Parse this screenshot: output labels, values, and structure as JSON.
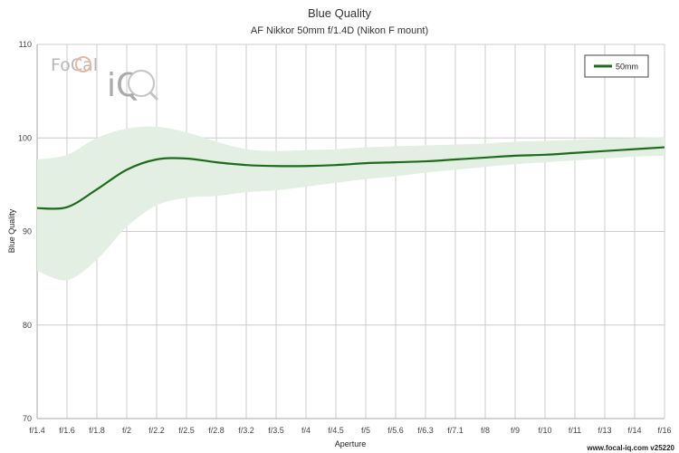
{
  "chart_data": {
    "type": "line",
    "title": "Blue Quality",
    "subtitle": "AF Nikkor 50mm f/1.4D (Nikon F mount)",
    "xlabel": "Aperture",
    "ylabel": "Blue Quality",
    "x_ticks": [
      "f/1.4",
      "f/1.6",
      "f/1.8",
      "f/2",
      "f/2.2",
      "f/2.5",
      "f/2.8",
      "f/3.2",
      "f/3.5",
      "f/4",
      "f/4.5",
      "f/5",
      "f/5.6",
      "f/6.3",
      "f/7.1",
      "f/8",
      "f/9",
      "f/10",
      "f/11",
      "f/13",
      "f/14",
      "f/16"
    ],
    "ylim": [
      70,
      110
    ],
    "y_ticks": [
      70,
      80,
      90,
      100,
      110
    ],
    "grid": true,
    "legend_position": "top-right",
    "series": [
      {
        "name": "50mm",
        "color": "#1e6b1e",
        "x": [
          "f/1.4",
          "f/1.6",
          "f/1.8",
          "f/2",
          "f/2.2",
          "f/2.5",
          "f/2.8",
          "f/3.2",
          "f/3.5",
          "f/4",
          "f/4.5",
          "f/5",
          "f/5.6",
          "f/6.3",
          "f/7.1",
          "f/8",
          "f/9",
          "f/10",
          "f/11",
          "f/13",
          "f/14",
          "f/16"
        ],
        "values": [
          92.5,
          92.6,
          94.5,
          96.6,
          97.7,
          97.8,
          97.4,
          97.1,
          97.0,
          97.0,
          97.1,
          97.3,
          97.4,
          97.5,
          97.7,
          97.9,
          98.1,
          98.2,
          98.4,
          98.6,
          98.8,
          99.0
        ],
        "band_upper": [
          97.7,
          98.2,
          100.0,
          101.0,
          101.2,
          100.6,
          99.6,
          98.8,
          98.6,
          98.7,
          98.8,
          99.0,
          99.1,
          99.2,
          99.3,
          99.4,
          99.6,
          99.7,
          99.8,
          99.9,
          100.0,
          100.1
        ],
        "band_lower": [
          85.8,
          84.8,
          87.0,
          90.5,
          92.8,
          93.6,
          93.8,
          94.2,
          94.4,
          94.8,
          95.2,
          95.6,
          95.9,
          96.3,
          96.6,
          96.9,
          97.2,
          97.4,
          97.6,
          97.8,
          98.0,
          98.1
        ]
      }
    ]
  },
  "watermark": {
    "brand_top": "FoCal",
    "brand_bottom": "iQ"
  },
  "footer": {
    "text": "www.focal-iq.com v25220"
  },
  "colors": {
    "line": "#1e6b1e",
    "band": "#e3efe3",
    "grid": "#cccccc"
  }
}
